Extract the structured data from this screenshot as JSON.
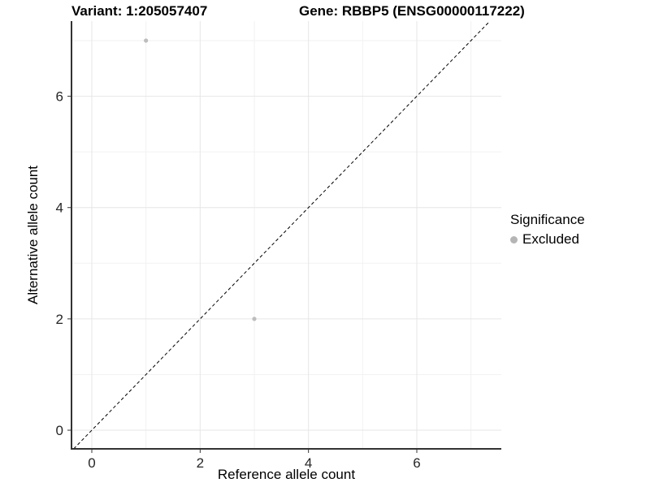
{
  "chart_data": {
    "type": "scatter",
    "title_left": "Variant: 1:205057407",
    "title_right": "Gene: RBBP5 (ENSG00000117222)",
    "xlabel": "Reference allele count",
    "ylabel": "Alternative allele count",
    "xlim": [
      -0.375,
      7.56
    ],
    "ylim": [
      -0.335,
      7.35
    ],
    "x_major_ticks": [
      0,
      2,
      4,
      6
    ],
    "y_major_ticks": [
      0,
      2,
      4,
      6
    ],
    "x_minor_gridlines": [
      1,
      3,
      5,
      7
    ],
    "y_minor_gridlines": [
      1,
      3,
      5,
      7
    ],
    "grid": true,
    "series": [
      {
        "name": "Excluded",
        "color": "#bdbdbd",
        "points": [
          [
            1,
            7
          ],
          [
            3,
            2
          ]
        ]
      }
    ],
    "identity_line": {
      "type": "y=x",
      "style": "dashed",
      "color": "#000000"
    },
    "legend": {
      "title": "Significance",
      "position": "right",
      "entries": [
        {
          "label": "Excluded",
          "color": "#b5b5b5"
        }
      ]
    }
  },
  "colors": {
    "background": "#ffffff",
    "major_grid": "#e6e6e6",
    "minor_grid": "#f2f2f2",
    "axis_line": "#333333",
    "tick_mark": "#333333",
    "tick_label": "#262626",
    "axis_title": "#000000"
  }
}
